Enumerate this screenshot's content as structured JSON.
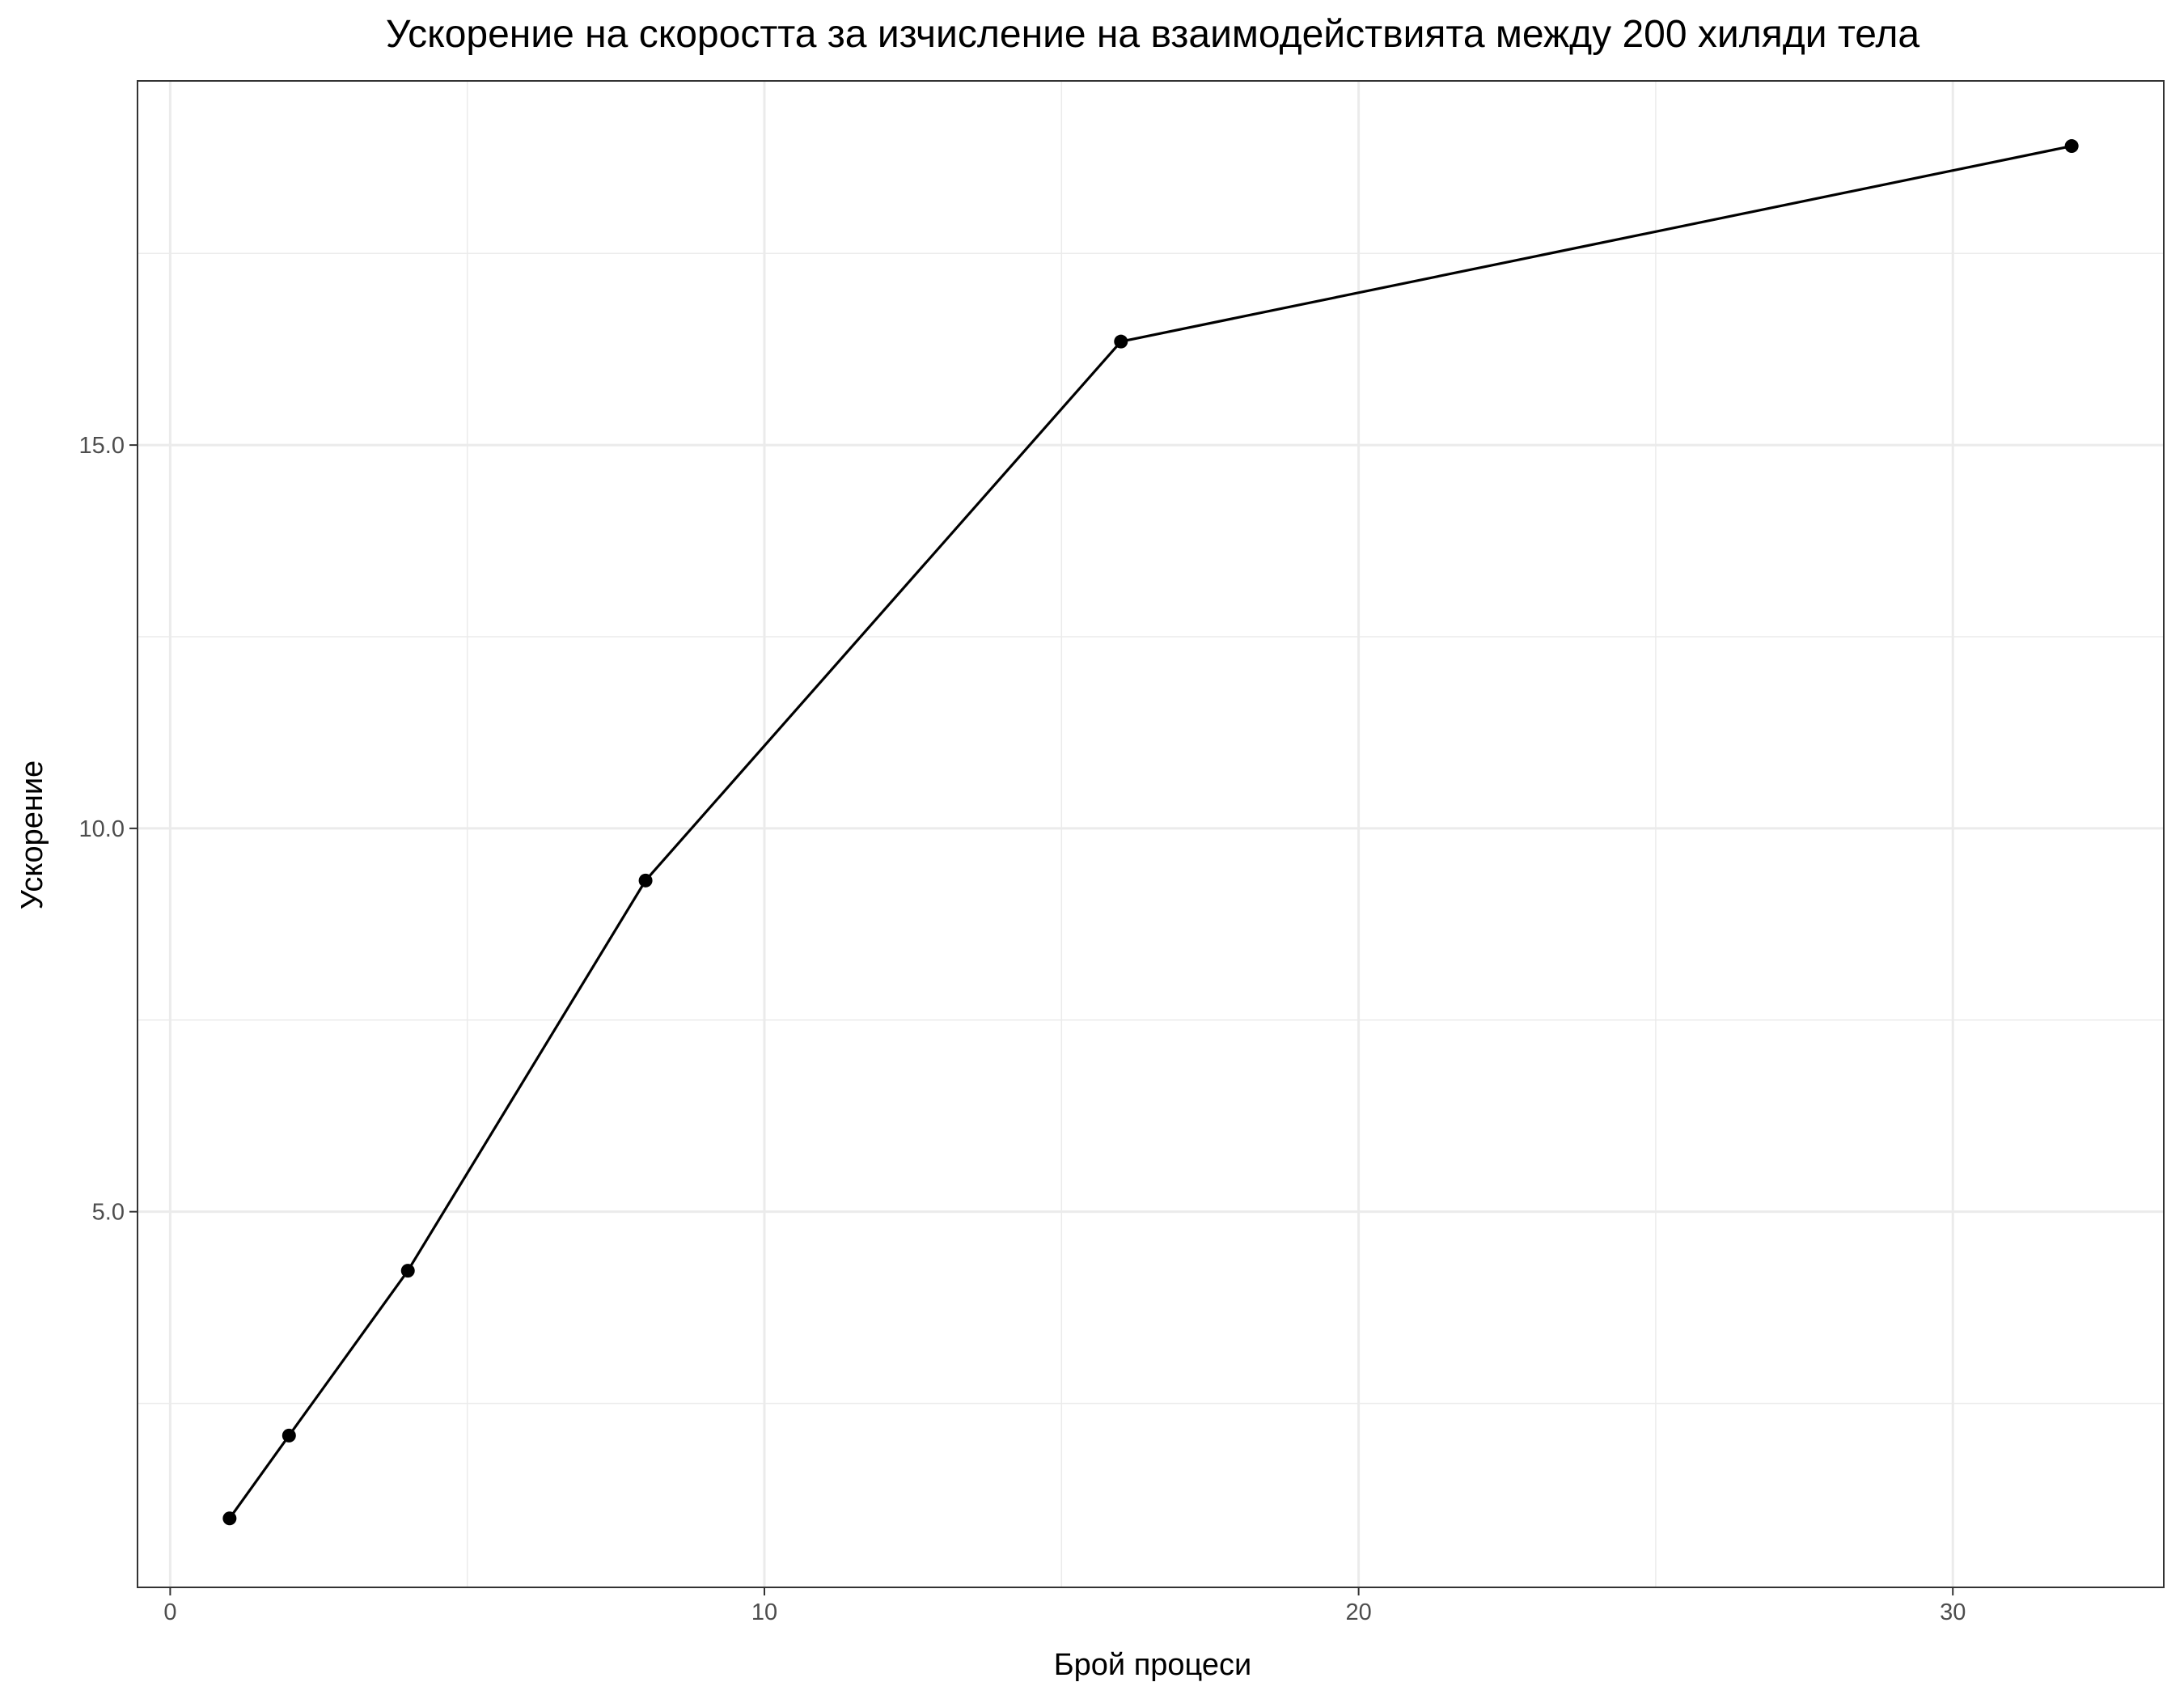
{
  "chart_data": {
    "type": "line",
    "title": "Ускорение на скоростта за изчисление на взаимодействията между 200 хиляди тела",
    "xlabel": "Брой процеси",
    "ylabel": "Ускорение",
    "x": [
      1,
      2,
      4,
      8,
      16,
      32
    ],
    "series": [
      {
        "values": [
          1.0,
          2.08,
          4.23,
          9.32,
          16.35,
          18.9
        ]
      }
    ],
    "xlim": [
      -0.55,
      33.55
    ],
    "ylim": [
      0.1,
      19.75
    ],
    "x_ticks": [
      0,
      10,
      20,
      30
    ],
    "x_tick_labels": [
      "0",
      "10",
      "20",
      "30"
    ],
    "y_ticks": [
      5,
      10,
      15
    ],
    "y_tick_labels": [
      "5.0",
      "10.0",
      "15.0"
    ],
    "grid": true,
    "legend": "none",
    "colors": {
      "line": "#000000",
      "point": "#000000",
      "grid": "#ebebeb",
      "panel_border": "#333333"
    }
  }
}
